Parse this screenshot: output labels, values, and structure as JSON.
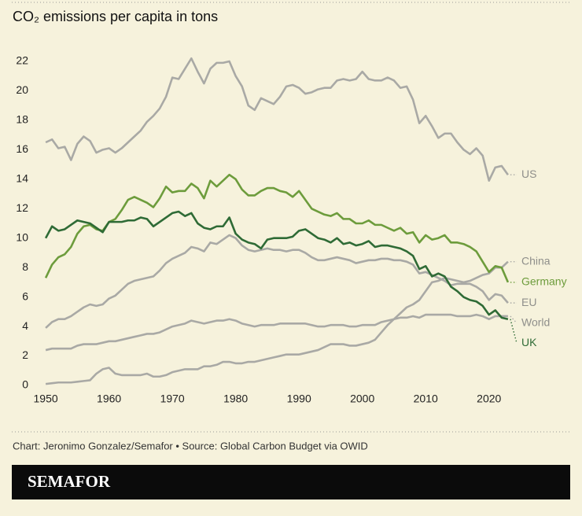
{
  "chart_data": {
    "type": "line",
    "title": "CO₂ emissions per capita in tons",
    "footer": "Chart: Jeronimo Gonzalez/Semafor • Source: Global Carbon Budget via OWID",
    "brand": "SEMAFOR",
    "x": [
      1950,
      1951,
      1952,
      1953,
      1954,
      1955,
      1956,
      1957,
      1958,
      1959,
      1960,
      1961,
      1962,
      1963,
      1964,
      1965,
      1966,
      1967,
      1968,
      1969,
      1970,
      1971,
      1972,
      1973,
      1974,
      1975,
      1976,
      1977,
      1978,
      1979,
      1980,
      1981,
      1982,
      1983,
      1984,
      1985,
      1986,
      1987,
      1988,
      1989,
      1990,
      1991,
      1992,
      1993,
      1994,
      1995,
      1996,
      1997,
      1998,
      1999,
      2000,
      2001,
      2002,
      2003,
      2004,
      2005,
      2006,
      2007,
      2008,
      2009,
      2010,
      2011,
      2012,
      2013,
      2014,
      2015,
      2016,
      2017,
      2018,
      2019,
      2020,
      2021,
      2022,
      2023
    ],
    "xlim": [
      1948,
      2025
    ],
    "xticks": [
      1950,
      1960,
      1970,
      1980,
      1990,
      2000,
      2010,
      2020
    ],
    "ylim": [
      0,
      22
    ],
    "yticks": [
      0,
      2,
      4,
      6,
      8,
      10,
      12,
      14,
      16,
      18,
      20,
      22
    ],
    "series": [
      {
        "name": "US",
        "color": "#a9a9a5",
        "values": [
          16.5,
          16.7,
          16.1,
          16.2,
          15.3,
          16.4,
          16.9,
          16.6,
          15.8,
          16.0,
          16.1,
          15.8,
          16.1,
          16.5,
          16.9,
          17.3,
          17.9,
          18.3,
          18.8,
          19.6,
          20.9,
          20.8,
          21.5,
          22.2,
          21.3,
          20.5,
          21.5,
          21.9,
          21.9,
          22.0,
          21.0,
          20.3,
          19.0,
          18.7,
          19.5,
          19.3,
          19.1,
          19.6,
          20.3,
          20.4,
          20.2,
          19.8,
          19.9,
          20.1,
          20.2,
          20.2,
          20.7,
          20.8,
          20.7,
          20.8,
          21.3,
          20.8,
          20.7,
          20.7,
          20.9,
          20.7,
          20.2,
          20.3,
          19.4,
          17.8,
          18.3,
          17.6,
          16.8,
          17.1,
          17.1,
          16.5,
          16.0,
          15.7,
          16.1,
          15.6,
          13.9,
          14.8,
          14.9,
          14.3
        ]
      },
      {
        "name": "China",
        "color": "#a9a9a5",
        "values": [
          0.1,
          0.15,
          0.2,
          0.2,
          0.2,
          0.25,
          0.3,
          0.35,
          0.8,
          1.1,
          1.2,
          0.8,
          0.7,
          0.7,
          0.7,
          0.7,
          0.8,
          0.6,
          0.6,
          0.7,
          0.9,
          1.0,
          1.1,
          1.1,
          1.1,
          1.3,
          1.3,
          1.4,
          1.6,
          1.6,
          1.5,
          1.5,
          1.6,
          1.6,
          1.7,
          1.8,
          1.9,
          2.0,
          2.1,
          2.1,
          2.1,
          2.2,
          2.3,
          2.4,
          2.6,
          2.8,
          2.8,
          2.8,
          2.7,
          2.7,
          2.8,
          2.9,
          3.1,
          3.6,
          4.1,
          4.5,
          4.9,
          5.3,
          5.5,
          5.8,
          6.4,
          7.0,
          7.1,
          7.3,
          7.2,
          7.1,
          7.0,
          7.1,
          7.3,
          7.5,
          7.6,
          8.0,
          8.0,
          8.4
        ]
      },
      {
        "name": "EU",
        "color": "#a9a9a5",
        "values": [
          3.9,
          4.3,
          4.5,
          4.5,
          4.7,
          5.0,
          5.3,
          5.5,
          5.4,
          5.5,
          5.9,
          6.1,
          6.5,
          6.9,
          7.1,
          7.2,
          7.3,
          7.4,
          7.8,
          8.3,
          8.6,
          8.8,
          9.0,
          9.4,
          9.3,
          9.1,
          9.7,
          9.6,
          9.9,
          10.2,
          10.0,
          9.5,
          9.2,
          9.1,
          9.2,
          9.3,
          9.2,
          9.2,
          9.1,
          9.2,
          9.2,
          9.0,
          8.7,
          8.5,
          8.5,
          8.6,
          8.7,
          8.6,
          8.5,
          8.3,
          8.4,
          8.5,
          8.5,
          8.6,
          8.6,
          8.5,
          8.5,
          8.4,
          8.2,
          7.6,
          7.7,
          7.5,
          7.3,
          7.1,
          6.8,
          6.9,
          6.9,
          6.9,
          6.7,
          6.4,
          5.8,
          6.2,
          6.1,
          5.6
        ]
      },
      {
        "name": "World",
        "color": "#a9a9a5",
        "values": [
          2.4,
          2.5,
          2.5,
          2.5,
          2.5,
          2.7,
          2.8,
          2.8,
          2.8,
          2.9,
          3.0,
          3.0,
          3.1,
          3.2,
          3.3,
          3.4,
          3.5,
          3.5,
          3.6,
          3.8,
          4.0,
          4.1,
          4.2,
          4.4,
          4.3,
          4.2,
          4.3,
          4.4,
          4.4,
          4.5,
          4.4,
          4.2,
          4.1,
          4.0,
          4.1,
          4.1,
          4.1,
          4.2,
          4.2,
          4.2,
          4.2,
          4.2,
          4.1,
          4.0,
          4.0,
          4.1,
          4.1,
          4.1,
          4.0,
          4.0,
          4.1,
          4.1,
          4.1,
          4.3,
          4.4,
          4.5,
          4.6,
          4.6,
          4.7,
          4.6,
          4.8,
          4.8,
          4.8,
          4.8,
          4.8,
          4.7,
          4.7,
          4.7,
          4.8,
          4.7,
          4.5,
          4.7,
          4.7,
          4.7
        ]
      },
      {
        "name": "Germany",
        "color": "#6d9c3c",
        "values": [
          7.3,
          8.2,
          8.7,
          8.9,
          9.4,
          10.3,
          10.8,
          10.9,
          10.6,
          10.5,
          11.1,
          11.3,
          11.9,
          12.6,
          12.8,
          12.6,
          12.4,
          12.1,
          12.7,
          13.5,
          13.1,
          13.2,
          13.2,
          13.7,
          13.4,
          12.7,
          13.9,
          13.5,
          13.9,
          14.3,
          14.0,
          13.3,
          12.9,
          12.9,
          13.2,
          13.4,
          13.4,
          13.2,
          13.1,
          12.8,
          13.2,
          12.6,
          12.0,
          11.8,
          11.6,
          11.5,
          11.7,
          11.3,
          11.3,
          11.0,
          11.0,
          11.2,
          10.9,
          10.9,
          10.7,
          10.5,
          10.7,
          10.3,
          10.4,
          9.7,
          10.2,
          9.9,
          10.0,
          10.2,
          9.7,
          9.7,
          9.6,
          9.4,
          9.1,
          8.4,
          7.7,
          8.1,
          8.0,
          7.0
        ]
      },
      {
        "name": "UK",
        "color": "#2f6b36",
        "values": [
          10.0,
          10.8,
          10.5,
          10.6,
          10.9,
          11.2,
          11.1,
          11.0,
          10.7,
          10.4,
          11.1,
          11.1,
          11.1,
          11.2,
          11.2,
          11.4,
          11.3,
          10.8,
          11.1,
          11.4,
          11.7,
          11.8,
          11.5,
          11.7,
          11.0,
          10.7,
          10.6,
          10.8,
          10.8,
          11.4,
          10.3,
          9.9,
          9.7,
          9.6,
          9.3,
          9.9,
          10.0,
          10.0,
          10.0,
          10.1,
          10.5,
          10.6,
          10.3,
          10.0,
          9.9,
          9.7,
          10.0,
          9.6,
          9.7,
          9.5,
          9.6,
          9.8,
          9.4,
          9.5,
          9.5,
          9.4,
          9.3,
          9.1,
          8.8,
          7.9,
          8.1,
          7.4,
          7.6,
          7.4,
          6.7,
          6.4,
          6.0,
          5.8,
          5.7,
          5.4,
          4.8,
          5.1,
          4.6,
          4.5
        ]
      }
    ]
  }
}
